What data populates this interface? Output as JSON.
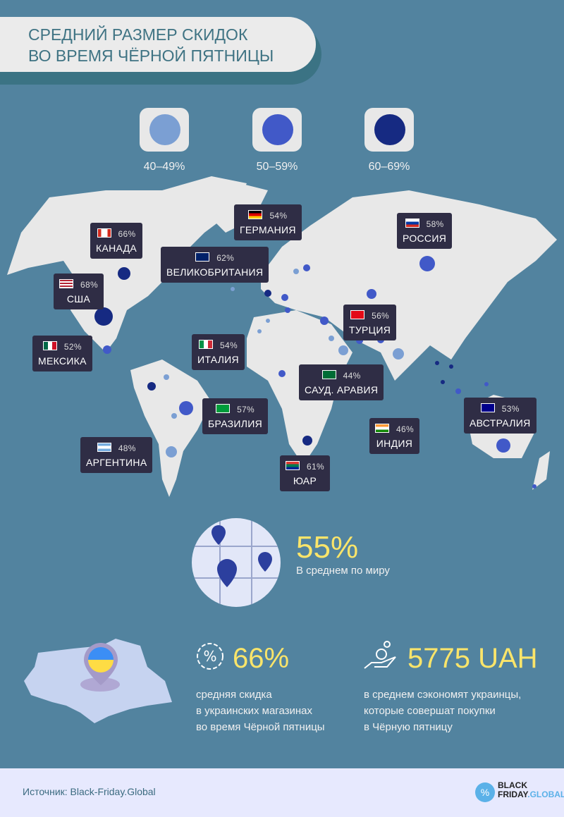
{
  "title": {
    "line1": "СРЕДНИЙ РАЗМЕР СКИДОК",
    "line2": "ВО ВРЕМЯ ЧЁРНОЙ ПЯТНИЦЫ"
  },
  "legend": [
    {
      "label": "40–49%",
      "color": "#7b9fd3"
    },
    {
      "label": "50–59%",
      "color": "#4159c8"
    },
    {
      "label": "60–69%",
      "color": "#162a82"
    }
  ],
  "countries": [
    {
      "name": "КАНАДА",
      "value": "66%",
      "flag": "canada-flag"
    },
    {
      "name": "США",
      "value": "68%",
      "flag": "usa-flag"
    },
    {
      "name": "ВЕЛИКОБРИТАНИЯ",
      "value": "62%",
      "flag": "uk-flag"
    },
    {
      "name": "ГЕРМАНИЯ",
      "value": "54%",
      "flag": "germany-flag"
    },
    {
      "name": "РОССИЯ",
      "value": "58%",
      "flag": "russia-flag"
    },
    {
      "name": "ТУРЦИЯ",
      "value": "56%",
      "flag": "turkey-flag"
    },
    {
      "name": "МЕКСИКА",
      "value": "52%",
      "flag": "mexico-flag"
    },
    {
      "name": "ИТАЛИЯ",
      "value": "54%",
      "flag": "italy-flag"
    },
    {
      "name": "САУД. АРАВИЯ",
      "value": "44%",
      "flag": "saudi-flag"
    },
    {
      "name": "БРАЗИЛИЯ",
      "value": "57%",
      "flag": "brazil-flag"
    },
    {
      "name": "АРГЕНТИНА",
      "value": "48%",
      "flag": "argentina-flag"
    },
    {
      "name": "ИНДИЯ",
      "value": "46%",
      "flag": "india-flag"
    },
    {
      "name": "АВСТРАЛИЯ",
      "value": "53%",
      "flag": "australia-flag"
    },
    {
      "name": "ЮАР",
      "value": "61%",
      "flag": "south-africa-flag"
    }
  ],
  "world": {
    "value": "55%",
    "caption": "В среднем по миру"
  },
  "ukraine": {
    "value": "66%",
    "lines": [
      "средняя скидка",
      "в украинских магазинах",
      "во время Чёрной пятницы"
    ]
  },
  "savings": {
    "value": "5775 UAH",
    "lines": [
      "в среднем сэкономят украинцы,",
      "которые совершат покупки",
      "в Чёрную пятницу"
    ]
  },
  "footer": {
    "source": "Источник: Black-Friday.Global",
    "logo": "BLACK FRIDAY.GLOBAL"
  }
}
